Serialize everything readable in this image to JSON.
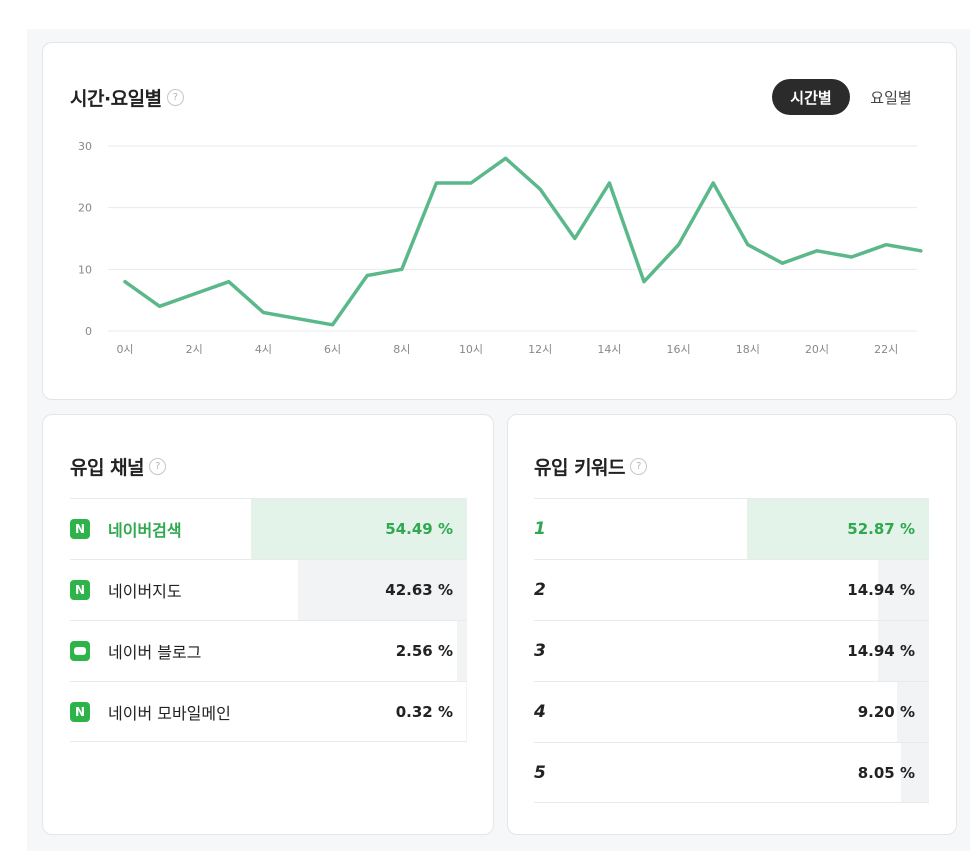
{
  "time_card": {
    "title": "시간·요일별",
    "help": "?",
    "toggle_active": "시간별",
    "toggle_other": "요일별"
  },
  "chart_data": {
    "type": "line",
    "x": [
      0,
      1,
      2,
      3,
      4,
      5,
      6,
      7,
      8,
      9,
      10,
      11,
      12,
      13,
      14,
      15,
      16,
      17,
      18,
      19,
      20,
      21,
      22,
      23
    ],
    "series": [
      {
        "values": [
          8,
          4,
          6,
          8,
          3,
          2,
          1,
          9,
          10,
          24,
          24,
          28,
          23,
          15,
          24,
          8,
          14,
          24,
          14,
          11,
          13,
          12,
          14,
          13
        ]
      }
    ],
    "x_tick_labels": [
      "0시",
      "2시",
      "4시",
      "6시",
      "8시",
      "10시",
      "12시",
      "14시",
      "16시",
      "18시",
      "20시",
      "22시"
    ],
    "y_ticks": [
      "0",
      "10",
      "20",
      "30"
    ],
    "ylim": [
      0,
      30
    ],
    "grid": true,
    "color": "#5bb88a"
  },
  "channel_card": {
    "title": "유입 채널",
    "help": "?",
    "rows": [
      {
        "icon": "N",
        "label": "네이버검색",
        "pct": "54.49 %",
        "value": 54.49
      },
      {
        "icon": "N",
        "label": "네이버지도",
        "pct": "42.63 %",
        "value": 42.63
      },
      {
        "icon": "blog",
        "label": "네이버 블로그",
        "pct": "2.56 %",
        "value": 2.56
      },
      {
        "icon": "N",
        "label": "네이버 모바일메인",
        "pct": "0.32 %",
        "value": 0.32
      }
    ]
  },
  "keyword_card": {
    "title": "유입 키워드",
    "help": "?",
    "rows": [
      {
        "rank": "1",
        "pct": "52.87 %",
        "value": 52.87
      },
      {
        "rank": "2",
        "pct": "14.94 %",
        "value": 14.94
      },
      {
        "rank": "3",
        "pct": "14.94 %",
        "value": 14.94
      },
      {
        "rank": "4",
        "pct": "9.20 %",
        "value": 9.2
      },
      {
        "rank": "5",
        "pct": "8.05 %",
        "value": 8.05
      }
    ]
  }
}
